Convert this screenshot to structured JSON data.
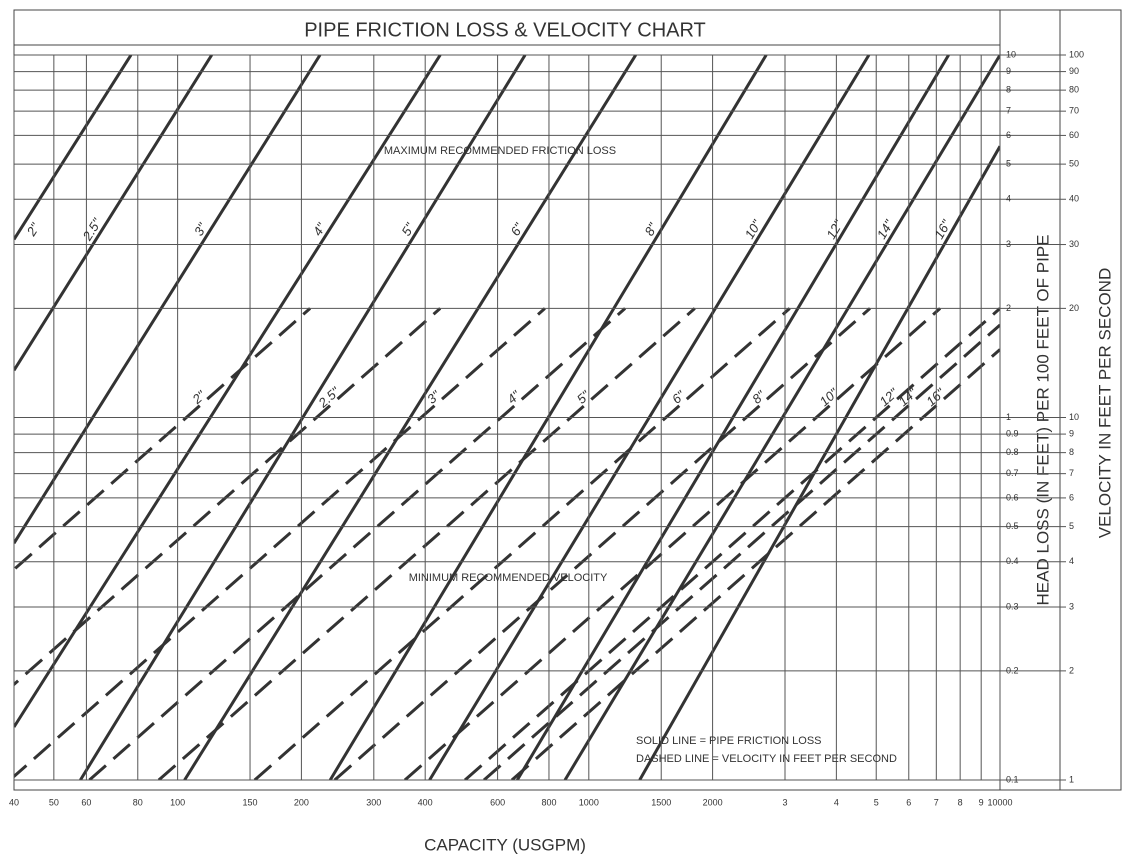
{
  "chart_data": {
    "type": "line",
    "title": "PIPE FRICTION LOSS & VELOCITY CHART",
    "x_label": "CAPACITY (USGPM)",
    "y_label": "HEAD LOSS (IN FEET) PER 100 FEET OF PIPE",
    "y2_label": "VELOCITY IN FEET PER SECOND",
    "xscale": "log",
    "yscale": "log",
    "y2scale": "log",
    "xlim": [
      40,
      10000
    ],
    "ylim": [
      0.1,
      10
    ],
    "y2lim": [
      1,
      100
    ],
    "grid": true,
    "xticks": [
      40,
      50,
      60,
      80,
      100,
      150,
      200,
      300,
      400,
      600,
      800,
      1000,
      1500,
      2000,
      {
        "value": 3000,
        "label": "3"
      },
      {
        "value": 4000,
        "label": "4"
      },
      {
        "value": 5000,
        "label": "5"
      },
      {
        "value": 6000,
        "label": "6"
      },
      {
        "value": 7000,
        "label": "7"
      },
      {
        "value": 8000,
        "label": "8"
      },
      {
        "value": 9000,
        "label": "9"
      },
      10000
    ],
    "yticks": [
      0.1,
      0.2,
      0.3,
      0.4,
      0.5,
      0.6,
      0.7,
      0.8,
      0.9,
      1,
      2,
      3,
      4,
      5,
      6,
      7,
      8,
      9,
      10
    ],
    "y2ticks": [
      1,
      2,
      3,
      4,
      5,
      6,
      7,
      8,
      9,
      10,
      20,
      30,
      40,
      50,
      60,
      70,
      80,
      90,
      100
    ],
    "annotations": [
      "MAXIMUM RECOMMENDED FRICTION LOSS",
      "MINIMUM RECOMMENDED VELOCITY",
      "SOLID LINE = PIPE FRICTION LOSS",
      "DASHED LINE = VELOCITY IN FEET PER SECOND"
    ],
    "series": [
      {
        "name": "2\"",
        "color": "#333333",
        "line_style": "solid",
        "x": [
          40,
          77
        ],
        "values": [
          3.1,
          10
        ]
      },
      {
        "name": "2.5\"",
        "color": "#333333",
        "line_style": "solid",
        "x": [
          40,
          121
        ],
        "values": [
          1.35,
          10
        ]
      },
      {
        "name": "3\"",
        "color": "#333333",
        "line_style": "solid",
        "x": [
          40,
          222
        ],
        "values": [
          0.45,
          10
        ]
      },
      {
        "name": "4\"",
        "color": "#333333",
        "line_style": "solid",
        "x": [
          40,
          435
        ],
        "values": [
          0.14,
          10
        ]
      },
      {
        "name": "5\"",
        "color": "#333333",
        "line_style": "solid",
        "x": [
          58,
          700
        ],
        "values": [
          0.1,
          10
        ]
      },
      {
        "name": "6\"",
        "color": "#333333",
        "line_style": "solid",
        "x": [
          104,
          1300
        ],
        "values": [
          0.1,
          10
        ]
      },
      {
        "name": "8\"",
        "color": "#333333",
        "line_style": "solid",
        "x": [
          235,
          2700
        ],
        "values": [
          0.1,
          10
        ]
      },
      {
        "name": "10\"",
        "color": "#333333",
        "line_style": "solid",
        "x": [
          410,
          4800
        ],
        "values": [
          0.1,
          10
        ]
      },
      {
        "name": "12\"",
        "color": "#333333",
        "line_style": "solid",
        "x": [
          670,
          7500
        ],
        "values": [
          0.1,
          10
        ]
      },
      {
        "name": "14\"",
        "color": "#333333",
        "line_style": "solid",
        "x": [
          875,
          10000
        ],
        "values": [
          0.1,
          10
        ]
      },
      {
        "name": "16\"",
        "color": "#333333",
        "line_style": "solid",
        "x": [
          1330,
          10000
        ],
        "values": [
          0.1,
          5.6
        ]
      },
      {
        "name": "2\"",
        "color": "#333333",
        "line_style": "dashed",
        "axis": "y2",
        "x": [
          10.5,
          210
        ],
        "values": [
          1,
          20
        ]
      },
      {
        "name": "2.5\"",
        "color": "#333333",
        "line_style": "dashed",
        "axis": "y2",
        "x": [
          21.8,
          435
        ],
        "values": [
          1,
          20
        ]
      },
      {
        "name": "3\"",
        "color": "#333333",
        "line_style": "dashed",
        "axis": "y2",
        "x": [
          39.1,
          782
        ],
        "values": [
          1,
          20
        ]
      },
      {
        "name": "4\"",
        "color": "#333333",
        "line_style": "dashed",
        "axis": "y2",
        "x": [
          61,
          1225
        ],
        "values": [
          1,
          20
        ]
      },
      {
        "name": "5\"",
        "color": "#333333",
        "line_style": "dashed",
        "axis": "y2",
        "x": [
          90,
          1810
        ],
        "values": [
          1,
          20
        ]
      },
      {
        "name": "6\"",
        "color": "#333333",
        "line_style": "dashed",
        "axis": "y2",
        "x": [
          154,
          3080
        ],
        "values": [
          1,
          20
        ]
      },
      {
        "name": "8\"",
        "color": "#333333",
        "line_style": "dashed",
        "axis": "y2",
        "x": [
          241,
          4830
        ],
        "values": [
          1,
          20
        ]
      },
      {
        "name": "10\"",
        "color": "#333333",
        "line_style": "dashed",
        "axis": "y2",
        "x": [
          357,
          7150
        ],
        "values": [
          1,
          20
        ]
      },
      {
        "name": "12\"",
        "color": "#333333",
        "line_style": "dashed",
        "axis": "y2",
        "x": [
          500,
          10000
        ],
        "values": [
          1,
          20
        ]
      },
      {
        "name": "14\"",
        "color": "#333333",
        "line_style": "dashed",
        "axis": "y2",
        "x": [
          556,
          10000
        ],
        "values": [
          1,
          18
        ]
      },
      {
        "name": "16\"",
        "color": "#333333",
        "line_style": "dashed",
        "axis": "y2",
        "x": [
          650,
          10000
        ],
        "values": [
          1,
          15.4
        ]
      }
    ]
  }
}
